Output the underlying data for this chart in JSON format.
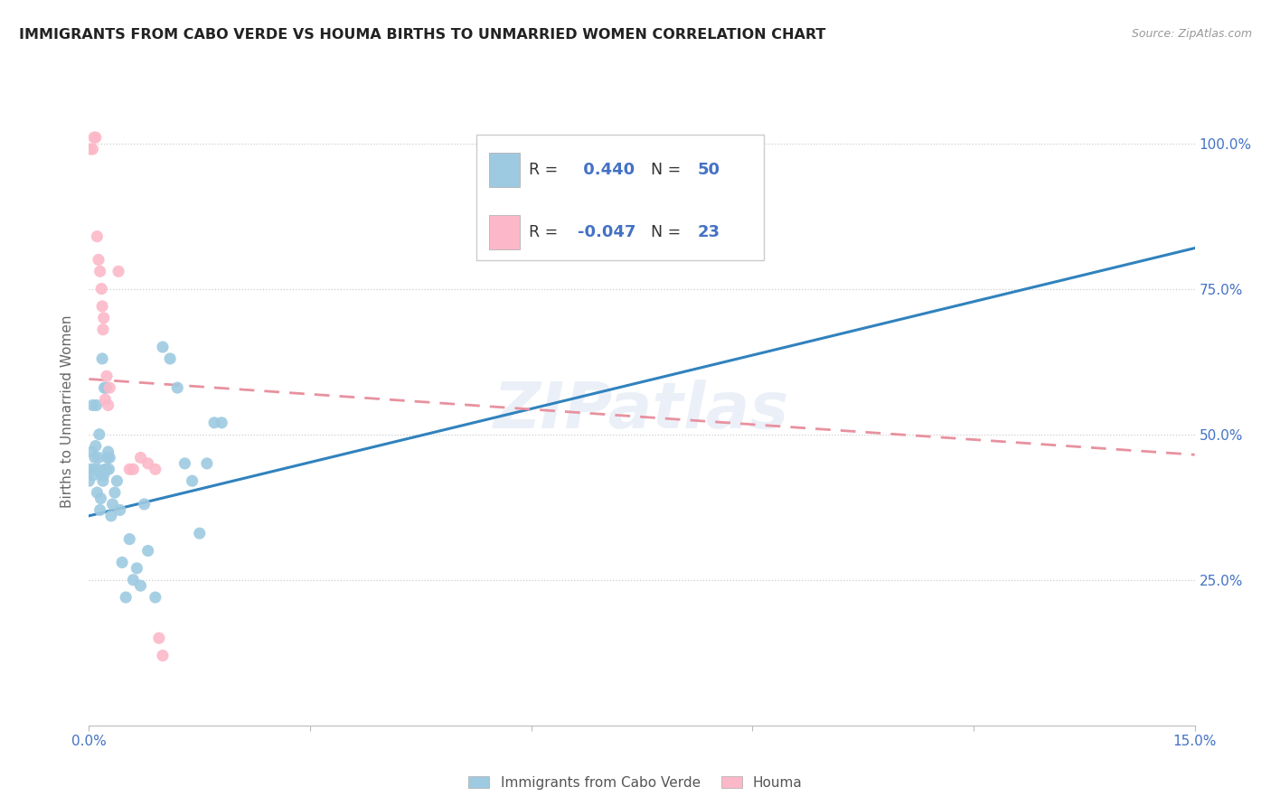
{
  "title": "IMMIGRANTS FROM CABO VERDE VS HOUMA BIRTHS TO UNMARRIED WOMEN CORRELATION CHART",
  "source": "Source: ZipAtlas.com",
  "ylabel_label": "Births to Unmarried Women",
  "legend_blue_label": "Immigrants from Cabo Verde",
  "legend_pink_label": "Houma",
  "blue_R": 0.44,
  "blue_N": 50,
  "pink_R": -0.047,
  "pink_N": 23,
  "blue_color": "#9ecae1",
  "pink_color": "#fcb8c8",
  "blue_line_color": "#3182bd",
  "pink_line_color": "#e8919f",
  "axis_tick_color": "#4472c4",
  "watermark": "ZIPatlas",
  "blue_x": [
    0.0,
    0.0002,
    0.0004,
    0.0005,
    0.0006,
    0.0007,
    0.0008,
    0.0009,
    0.001,
    0.0011,
    0.0012,
    0.0013,
    0.0014,
    0.0015,
    0.0016,
    0.0017,
    0.0018,
    0.0019,
    0.002,
    0.0021,
    0.0022,
    0.0023,
    0.0024,
    0.0025,
    0.0026,
    0.0027,
    0.0028,
    0.003,
    0.0032,
    0.0035,
    0.0038,
    0.0042,
    0.0045,
    0.005,
    0.0055,
    0.006,
    0.0065,
    0.007,
    0.0075,
    0.008,
    0.009,
    0.01,
    0.011,
    0.012,
    0.013,
    0.014,
    0.015,
    0.016,
    0.017,
    0.018
  ],
  "blue_y": [
    0.42,
    0.44,
    0.47,
    0.55,
    0.43,
    0.44,
    0.46,
    0.48,
    0.55,
    0.4,
    0.44,
    0.46,
    0.5,
    0.37,
    0.39,
    0.43,
    0.63,
    0.42,
    0.43,
    0.58,
    0.44,
    0.58,
    0.44,
    0.46,
    0.47,
    0.44,
    0.46,
    0.36,
    0.38,
    0.4,
    0.42,
    0.37,
    0.28,
    0.22,
    0.32,
    0.25,
    0.27,
    0.24,
    0.38,
    0.3,
    0.22,
    0.65,
    0.63,
    0.58,
    0.45,
    0.42,
    0.33,
    0.45,
    0.52,
    0.52
  ],
  "pink_x": [
    0.0002,
    0.0005,
    0.0007,
    0.0009,
    0.0011,
    0.0013,
    0.0015,
    0.0017,
    0.0018,
    0.0019,
    0.002,
    0.0022,
    0.0024,
    0.0026,
    0.0028,
    0.004,
    0.0055,
    0.006,
    0.007,
    0.008,
    0.009,
    0.0095,
    0.01
  ],
  "pink_y": [
    0.99,
    0.99,
    1.01,
    1.01,
    0.84,
    0.8,
    0.78,
    0.75,
    0.72,
    0.68,
    0.7,
    0.56,
    0.6,
    0.55,
    0.58,
    0.78,
    0.44,
    0.44,
    0.46,
    0.45,
    0.44,
    0.15,
    0.12
  ],
  "xmin": 0.0,
  "xmax": 0.15,
  "ymin": 0.0,
  "ymax": 1.08,
  "y_ticks": [
    0.25,
    0.5,
    0.75,
    1.0
  ],
  "y_tick_labels": [
    "25.0%",
    "50.0%",
    "75.0%",
    "100.0%"
  ],
  "x_ticks": [
    0.0,
    0.03,
    0.06,
    0.09,
    0.12,
    0.15
  ],
  "x_tick_labels": [
    "0.0%",
    "",
    "",
    "",
    "",
    "15.0%"
  ],
  "blue_line_x": [
    0.0,
    0.15
  ],
  "blue_line_y": [
    0.36,
    0.82
  ],
  "pink_line_x": [
    0.0,
    0.15
  ],
  "pink_line_y": [
    0.595,
    0.465
  ]
}
